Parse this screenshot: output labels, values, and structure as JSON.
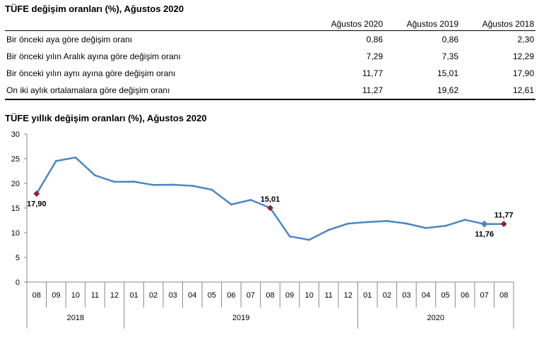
{
  "table": {
    "title": "TÜFE değişim oranları (%), Ağustos 2020",
    "columns": [
      "Ağustos 2020",
      "Ağustos 2019",
      "Ağustos 2018"
    ],
    "rows": [
      {
        "label": "Bir önceki aya göre değişim oranı",
        "values": [
          "0,86",
          "0,86",
          "2,30"
        ]
      },
      {
        "label": "Bir önceki yılın Aralık ayına göre değişim oranı",
        "values": [
          "7,29",
          "7,35",
          "12,29"
        ]
      },
      {
        "label": "Bir önceki yılın aynı ayına göre değişim oranı",
        "values": [
          "11,77",
          "15,01",
          "17,90"
        ]
      },
      {
        "label": "On iki aylık ortalamalara göre değişim oranı",
        "values": [
          "11,27",
          "19,62",
          "12,61"
        ]
      }
    ]
  },
  "chart_data": {
    "type": "line",
    "title": "TÜFE yıllık değişim oranları (%), Ağustos 2020",
    "categories": [
      "08",
      "09",
      "10",
      "11",
      "12",
      "01",
      "02",
      "03",
      "04",
      "05",
      "06",
      "07",
      "08",
      "09",
      "10",
      "11",
      "12",
      "01",
      "02",
      "03",
      "04",
      "05",
      "06",
      "07",
      "08"
    ],
    "years": [
      {
        "label": "2018",
        "start": 0,
        "count": 5
      },
      {
        "label": "2019",
        "start": 5,
        "count": 12
      },
      {
        "label": "2020",
        "start": 17,
        "count": 8
      }
    ],
    "values": [
      17.9,
      24.52,
      25.24,
      21.62,
      20.3,
      20.35,
      19.67,
      19.71,
      19.5,
      18.71,
      15.72,
      16.65,
      15.01,
      9.26,
      8.55,
      10.56,
      11.84,
      12.15,
      12.37,
      11.86,
      10.94,
      11.39,
      12.62,
      11.76,
      11.77
    ],
    "markers": [
      0,
      12,
      23,
      24
    ],
    "annotations": [
      {
        "index": 0,
        "text": "17,90",
        "pos": "below"
      },
      {
        "index": 12,
        "text": "15,01",
        "pos": "above"
      },
      {
        "index": 23,
        "text": "11,76",
        "pos": "below"
      },
      {
        "index": 24,
        "text": "11,77",
        "pos": "above"
      }
    ],
    "yticks": [
      "0",
      "5",
      "10",
      "15",
      "20",
      "25",
      "30"
    ],
    "ylim": [
      0,
      30
    ],
    "line_color": "#4a86c5",
    "marker_color": "#8b2232",
    "grid": false
  }
}
